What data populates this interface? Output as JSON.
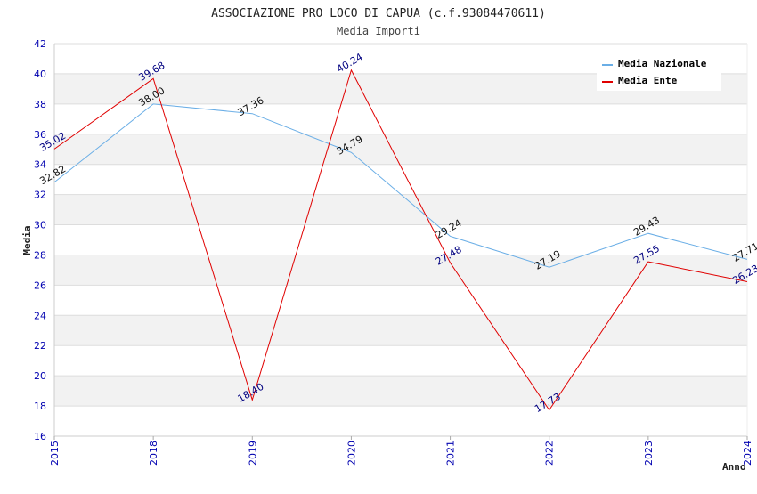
{
  "chart_data": {
    "type": "line",
    "title": "ASSOCIAZIONE PRO LOCO DI CAPUA (c.f.93084470611)",
    "subtitle": "Media Importi",
    "xlabel": "Anno",
    "ylabel": "Media",
    "ylim": [
      16,
      42
    ],
    "ytick_step": 2,
    "categories": [
      "2015",
      "2018",
      "2019",
      "2020",
      "2021",
      "2022",
      "2023",
      "2024"
    ],
    "series": [
      {
        "name": "Media Nazionale",
        "color": "#6aaee6",
        "label_color": "#111111",
        "values": [
          32.82,
          38.0,
          37.36,
          34.79,
          29.24,
          27.19,
          29.43,
          27.71
        ],
        "labels": [
          "32.82",
          "38.00",
          "37.36",
          "34.79",
          "29.24",
          "27.19",
          "29.43",
          "27.71"
        ]
      },
      {
        "name": "Media Ente",
        "color": "#e00000",
        "label_color": "#000080",
        "values": [
          35.02,
          39.68,
          18.4,
          40.24,
          27.48,
          17.73,
          27.55,
          26.23
        ],
        "labels": [
          "35.02",
          "39.68",
          "18.40",
          "40.24",
          "27.48",
          "17.73",
          "27.55",
          "26.23"
        ]
      }
    ],
    "grid": true,
    "legend_position": "top-right"
  }
}
